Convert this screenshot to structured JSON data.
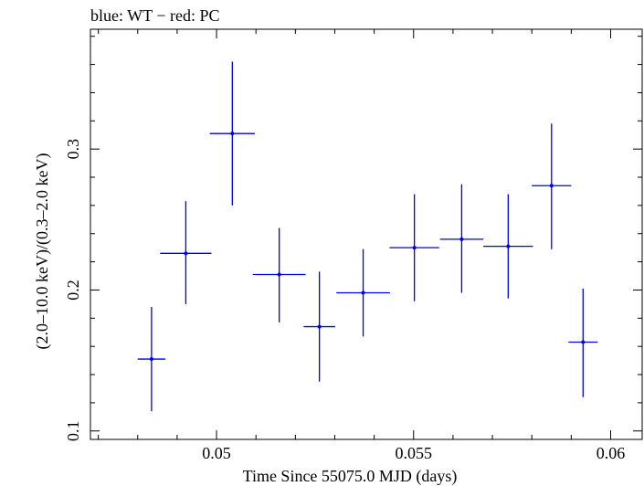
{
  "chart_data": {
    "type": "scatter",
    "title": "blue: WT − red: PC",
    "xlabel": "Time Since 55075.0 MJD (days)",
    "ylabel": "(2.0–10.0 keV)/(0.3–2.0 keV)",
    "xlim": [
      0.0468,
      0.0608
    ],
    "ylim": [
      0.094,
      0.385
    ],
    "xticks": [
      0.05,
      0.055,
      0.06
    ],
    "xtick_labels": [
      "0.05",
      "0.055",
      "0.06"
    ],
    "yticks": [
      0.1,
      0.2,
      0.3
    ],
    "ytick_labels": [
      "0.1",
      "0.2",
      "0.3"
    ],
    "grid": false,
    "series": [
      {
        "color": "#0000e6",
        "points": [
          {
            "x": 0.04835,
            "xerr": 0.00035,
            "y": 0.151,
            "ylo": 0.114,
            "yhi": 0.188
          },
          {
            "x": 0.04922,
            "xerr": 0.00065,
            "y": 0.226,
            "ylo": 0.19,
            "yhi": 0.263
          },
          {
            "x": 0.0504,
            "xerr": 0.00057,
            "y": 0.311,
            "ylo": 0.26,
            "yhi": 0.362
          },
          {
            "x": 0.05159,
            "xerr": 0.00067,
            "y": 0.211,
            "ylo": 0.177,
            "yhi": 0.244
          },
          {
            "x": 0.05261,
            "xerr": 0.0004,
            "y": 0.174,
            "ylo": 0.135,
            "yhi": 0.213
          },
          {
            "x": 0.05372,
            "xerr": 0.00068,
            "y": 0.198,
            "ylo": 0.167,
            "yhi": 0.229
          },
          {
            "x": 0.05502,
            "xerr": 0.00063,
            "y": 0.23,
            "ylo": 0.192,
            "yhi": 0.268
          },
          {
            "x": 0.05622,
            "xerr": 0.00055,
            "y": 0.236,
            "ylo": 0.198,
            "yhi": 0.275
          },
          {
            "x": 0.0574,
            "xerr": 0.00063,
            "y": 0.231,
            "ylo": 0.194,
            "yhi": 0.268
          },
          {
            "x": 0.0585,
            "xerr": 0.0005,
            "y": 0.274,
            "ylo": 0.229,
            "yhi": 0.318
          },
          {
            "x": 0.0593,
            "xerr": 0.00037,
            "y": 0.163,
            "ylo": 0.124,
            "yhi": 0.201
          }
        ]
      }
    ]
  }
}
